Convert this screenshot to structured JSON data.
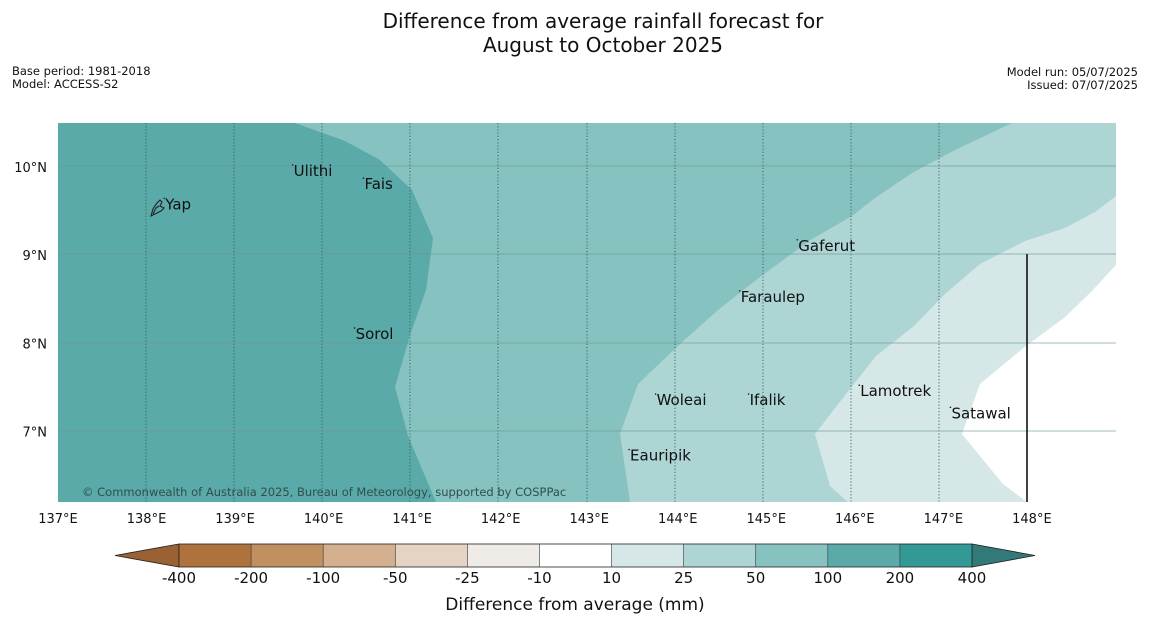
{
  "title": {
    "line1": "Difference from average rainfall forecast for",
    "line2": "August to October 2025"
  },
  "meta_left": {
    "base_period": "Base period: 1981-2018",
    "model": "Model: ACCESS-S2"
  },
  "meta_right": {
    "model_run": "Model run: 05/07/2025",
    "issued": "Issued: 07/07/2025"
  },
  "map": {
    "lon_range": [
      137.0,
      148.95
    ],
    "lat_range": [
      6.2,
      10.5
    ],
    "lon_ticks": [
      "137°E",
      "138°E",
      "139°E",
      "140°E",
      "141°E",
      "142°E",
      "143°E",
      "144°E",
      "145°E",
      "146°E",
      "147°E",
      "148°E"
    ],
    "lat_ticks": [
      "10°N",
      "9°N",
      "8°N",
      "7°N"
    ],
    "places": [
      {
        "name": "Yap",
        "lon": 138.2,
        "lat": 9.52
      },
      {
        "name": "Ulithi",
        "lon": 139.65,
        "lat": 9.9
      },
      {
        "name": "Fais",
        "lon": 140.45,
        "lat": 9.75
      },
      {
        "name": "Gaferut",
        "lon": 145.35,
        "lat": 9.05
      },
      {
        "name": "Faraulep",
        "lon": 144.7,
        "lat": 8.47
      },
      {
        "name": "Sorol",
        "lon": 140.35,
        "lat": 8.05
      },
      {
        "name": "Lamotrek",
        "lon": 146.05,
        "lat": 7.4
      },
      {
        "name": "Woleai",
        "lon": 143.75,
        "lat": 7.3
      },
      {
        "name": "Ifalik",
        "lon": 144.8,
        "lat": 7.3
      },
      {
        "name": "Satawal",
        "lon": 147.08,
        "lat": 7.15
      },
      {
        "name": "Eauripik",
        "lon": 143.45,
        "lat": 6.67
      }
    ],
    "copyright": "© Commonwealth of Australia 2025, Bureau of Meteorology, supported by COSPPac"
  },
  "legend": {
    "labels": [
      "-400",
      "-200",
      "-100",
      "-50",
      "-25",
      "-10",
      "10",
      "25",
      "50",
      "100",
      "200",
      "400"
    ],
    "colors": [
      "#ae723c",
      "#c0915e",
      "#d5b08f",
      "#e5d3c3",
      "#efebe6",
      "#ffffff",
      "#d5e8e7",
      "#add5d4",
      "#85c2c0",
      "#5aaaa9",
      "#339997"
    ],
    "low_extend_color": "#9a6232",
    "high_extend_color": "#317a79",
    "title": "Difference from average (mm)"
  },
  "contour_colors": {
    "band_100_200": "#5aaaa9",
    "band_50_100": "#85c2c0",
    "band_25_50": "#add5d4",
    "band_10_25": "#d5e8e7"
  }
}
